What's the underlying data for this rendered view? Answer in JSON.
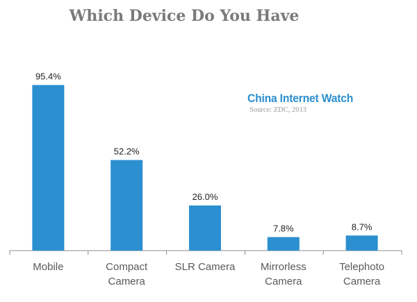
{
  "chart_data": {
    "type": "bar",
    "title": "Which Device Do You Have",
    "categories": [
      [
        "Mobile"
      ],
      [
        "Compact",
        "Camera"
      ],
      [
        "SLR Camera"
      ],
      [
        "Mirrorless",
        "Camera"
      ],
      [
        "Telephoto",
        "Camera"
      ]
    ],
    "values": [
      95.4,
      52.2,
      26.0,
      7.8,
      8.7
    ],
    "value_labels": [
      "95.4%",
      "52.2%",
      "26.0%",
      "7.8%",
      "8.7%"
    ],
    "xlabel": "",
    "ylabel": "",
    "ylim": [
      0,
      100
    ],
    "grid": false,
    "bar_color": "#2b8fd0",
    "axis_color": "#8c8c8c"
  },
  "watermark": {
    "brand": "China Internet Watch",
    "source": "Source: ZDC, 2013"
  }
}
